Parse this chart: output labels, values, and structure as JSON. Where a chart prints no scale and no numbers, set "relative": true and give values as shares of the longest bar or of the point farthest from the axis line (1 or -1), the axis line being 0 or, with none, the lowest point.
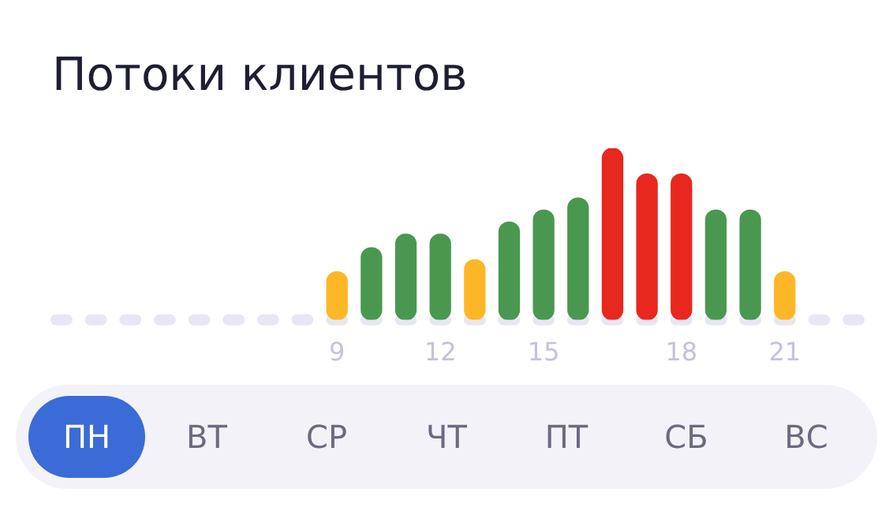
{
  "chart_data": {
    "type": "bar",
    "title": "Потоки клиентов",
    "relative": true,
    "categories": [
      null,
      null,
      null,
      null,
      null,
      null,
      null,
      null,
      "9",
      null,
      null,
      "12",
      null,
      null,
      "15",
      null,
      null,
      null,
      "18",
      null,
      null,
      "21",
      null,
      null
    ],
    "values": [
      0,
      0,
      0,
      0,
      0,
      0,
      0,
      0,
      0.28,
      0.42,
      0.5,
      0.5,
      0.35,
      0.57,
      0.64,
      0.71,
      1,
      0.85,
      0.85,
      0.64,
      0.64,
      0.28,
      0,
      0
    ],
    "colors": [
      "#e9e6f4",
      "#e9e6f4",
      "#e9e6f4",
      "#e9e6f4",
      "#e9e6f4",
      "#e9e6f4",
      "#e9e6f4",
      "#e9e6f4",
      "#fdb726",
      "#4a9850",
      "#4a9850",
      "#4a9850",
      "#fdb726",
      "#4a9850",
      "#4a9850",
      "#4a9850",
      "#e8271e",
      "#e8271e",
      "#e8271e",
      "#4a9850",
      "#4a9850",
      "#fdb726",
      "#e9e6f4",
      "#e9e6f4"
    ],
    "ref_lines": [
      {
        "axis": "y",
        "value": 0,
        "color": "#e9e6f4",
        "line_style": "dashed"
      }
    ],
    "annotations": [
      "ПН",
      "ВТ",
      "СР",
      "ЧТ",
      "ПТ",
      "СБ",
      "ВС"
    ],
    "grid": false,
    "legend": false
  }
}
